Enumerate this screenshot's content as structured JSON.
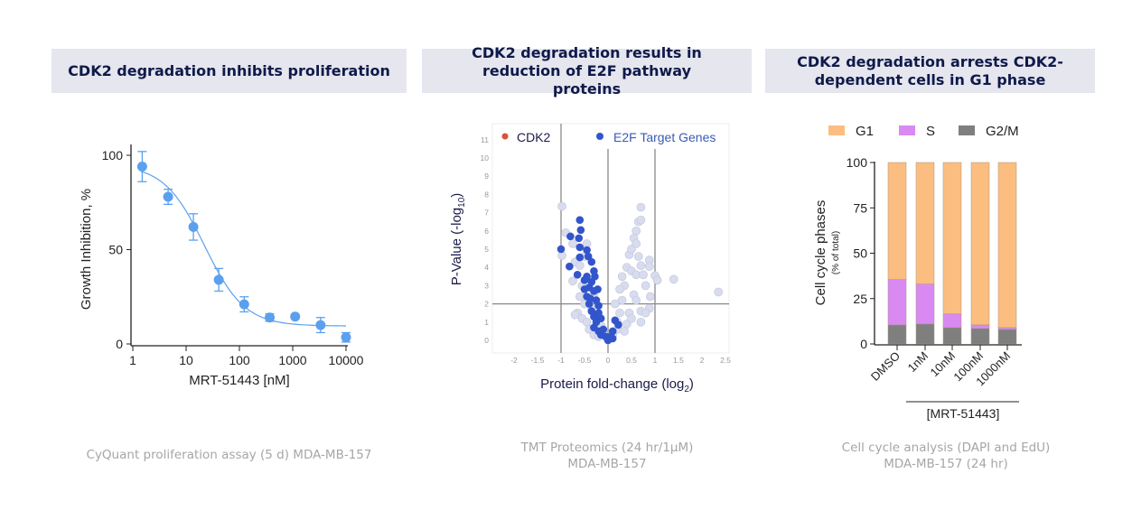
{
  "panels": [
    {
      "title": "CDK2 degradation inhibits proliferation",
      "caption": [
        "CyQuant proliferation assay (5 d) MDA-MB-157"
      ]
    },
    {
      "title": "CDK2 degradation results in reduction of E2F pathway proteins",
      "caption": [
        "TMT Proteomics (24 hr/1µM)",
        "MDA-MB-157"
      ]
    },
    {
      "title": "CDK2 degradation arrests CDK2-dependent cells in G1 phase",
      "caption": [
        "Cell cycle analysis (DAPI and EdU)",
        "MDA-MB-157 (24 hr)"
      ]
    }
  ],
  "chart_data": [
    {
      "type": "scatter",
      "xlabel": "MRT-51443 [nM]",
      "ylabel": "Growth Inhibition, %",
      "xscale": "log",
      "xlim": [
        1,
        10000
      ],
      "ylim": [
        0,
        110
      ],
      "xticks": [
        "1",
        "10",
        "100",
        "1000",
        "10000"
      ],
      "yticks": [
        "0",
        "50",
        "100"
      ],
      "color": "#5aa0ee",
      "fit": "sigmoidal dose-response",
      "points": [
        {
          "x": 1.5,
          "y": 94,
          "err": 8
        },
        {
          "x": 4.6,
          "y": 78,
          "err": 4
        },
        {
          "x": 13.7,
          "y": 62,
          "err": 7
        },
        {
          "x": 41,
          "y": 34,
          "err": 6
        },
        {
          "x": 123,
          "y": 21,
          "err": 4
        },
        {
          "x": 370,
          "y": 14,
          "err": 2
        },
        {
          "x": 1111,
          "y": 14.5,
          "err": 0
        },
        {
          "x": 3333,
          "y": 10,
          "err": 4
        },
        {
          "x": 10000,
          "y": 3.5,
          "err": 2.5
        }
      ]
    },
    {
      "type": "scatter",
      "xlabel": "Protein fold-change (log2)",
      "ylabel": "P-Value (-log10)",
      "xlim": [
        -2.5,
        2.5
      ],
      "ylim": [
        -0.6,
        11.8
      ],
      "xticks": [
        "-2",
        "-1.5",
        "-1",
        "-0.5",
        "0",
        "0.5",
        "1",
        "1.5",
        "2",
        "2.5"
      ],
      "yticks": [
        "0",
        "1",
        "2",
        "3",
        "4",
        "5",
        "6",
        "7",
        "8",
        "9",
        "10",
        "11"
      ],
      "reference_lines": {
        "x": [
          -1,
          0,
          1
        ],
        "y": [
          2
        ]
      },
      "legend": [
        {
          "name": "CDK2",
          "color": "#d9503c"
        },
        {
          "name": "E2F Target Genes",
          "color": "#3355cc"
        }
      ],
      "legend_placement": "top",
      "background_color": "#d8dcee",
      "background_points": [
        [
          -0.98,
          7.35
        ],
        [
          -0.9,
          5.9
        ],
        [
          -0.98,
          4.65
        ],
        [
          -0.75,
          5.3
        ],
        [
          -0.7,
          4.3
        ],
        [
          -0.75,
          3.25
        ],
        [
          -0.6,
          4.1
        ],
        [
          -0.45,
          5.3
        ],
        [
          -0.5,
          4.6
        ],
        [
          -0.55,
          3.0
        ],
        [
          -0.6,
          2.4
        ],
        [
          -0.65,
          1.5
        ],
        [
          -0.55,
          1.2
        ],
        [
          -0.45,
          1.0
        ],
        [
          -0.4,
          0.6
        ],
        [
          -0.3,
          0.3
        ],
        [
          -0.2,
          0.2
        ],
        [
          -0.5,
          2.0
        ],
        [
          -0.35,
          1.8
        ],
        [
          -0.25,
          1.3
        ],
        [
          -0.15,
          0.8
        ],
        [
          -0.1,
          0.4
        ],
        [
          0.05,
          0.1
        ],
        [
          0.1,
          0.3
        ],
        [
          0.2,
          0.6
        ],
        [
          0.25,
          1.5
        ],
        [
          0.3,
          2.2
        ],
        [
          0.35,
          3.0
        ],
        [
          0.3,
          3.5
        ],
        [
          0.4,
          4.0
        ],
        [
          0.45,
          4.7
        ],
        [
          0.5,
          5.0
        ],
        [
          0.55,
          5.6
        ],
        [
          0.6,
          6.0
        ],
        [
          0.65,
          6.5
        ],
        [
          0.7,
          6.6
        ],
        [
          0.7,
          7.3
        ],
        [
          0.6,
          5.3
        ],
        [
          0.65,
          4.6
        ],
        [
          0.5,
          3.8
        ],
        [
          0.6,
          3.6
        ],
        [
          0.7,
          4.1
        ],
        [
          0.75,
          3.6
        ],
        [
          0.8,
          3.0
        ],
        [
          0.88,
          4.4
        ],
        [
          0.88,
          4.05
        ],
        [
          0.9,
          2.4
        ],
        [
          0.88,
          1.75
        ],
        [
          1.0,
          3.55
        ],
        [
          1.05,
          3.3
        ],
        [
          1.4,
          3.35
        ],
        [
          2.35,
          2.65
        ],
        [
          0.7,
          1.6
        ],
        [
          0.7,
          1.0
        ],
        [
          0.45,
          1.5
        ],
        [
          0.4,
          0.9
        ],
        [
          0.55,
          2.5
        ],
        [
          0.2,
          1.0
        ],
        [
          0.15,
          2.0
        ],
        [
          0.25,
          2.8
        ],
        [
          0.5,
          1.2
        ],
        [
          0.35,
          0.5
        ],
        [
          -0.7,
          1.4
        ],
        [
          -0.3,
          2.5
        ],
        [
          0.6,
          2.2
        ],
        [
          0.8,
          1.5
        ]
      ],
      "e2f_points": [
        [
          -0.6,
          6.6
        ],
        [
          -0.58,
          6.05
        ],
        [
          -0.62,
          5.6
        ],
        [
          -0.8,
          5.7
        ],
        [
          -1.0,
          5.0
        ],
        [
          -0.6,
          5.1
        ],
        [
          -0.6,
          4.55
        ],
        [
          -0.45,
          4.95
        ],
        [
          -0.42,
          4.6
        ],
        [
          -0.82,
          4.05
        ],
        [
          -0.65,
          3.6
        ],
        [
          -0.35,
          4.3
        ],
        [
          -0.3,
          3.8
        ],
        [
          -0.45,
          3.5
        ],
        [
          -0.5,
          3.3
        ],
        [
          -0.35,
          3.2
        ],
        [
          -0.4,
          2.9
        ],
        [
          -0.3,
          2.7
        ],
        [
          -0.45,
          2.4
        ],
        [
          -0.4,
          2.0
        ],
        [
          -0.25,
          2.2
        ],
        [
          -0.35,
          1.6
        ],
        [
          -0.3,
          1.3
        ],
        [
          -0.25,
          1.0
        ],
        [
          -0.3,
          0.7
        ],
        [
          -0.2,
          0.5
        ],
        [
          -0.15,
          0.3
        ],
        [
          -0.1,
          0.6
        ],
        [
          -0.05,
          0.2
        ],
        [
          0.0,
          0.0
        ],
        [
          0.05,
          0.2
        ],
        [
          0.1,
          0.5
        ],
        [
          0.15,
          1.1
        ],
        [
          0.22,
          0.85
        ],
        [
          0.1,
          0.1
        ],
        [
          -0.2,
          1.5
        ],
        [
          -0.28,
          3.5
        ],
        [
          -0.22,
          2.8
        ],
        [
          -0.2,
          1.9
        ],
        [
          -0.15,
          1.2
        ],
        [
          -0.5,
          2.8
        ],
        [
          -0.38,
          2.3
        ]
      ]
    },
    {
      "type": "bar",
      "stacked": true,
      "ylabel": "Cell cycle phases",
      "ylabel_sub": "(% of total)",
      "ylim": [
        0,
        100
      ],
      "yticks": [
        "0",
        "25",
        "50",
        "75",
        "100"
      ],
      "categories": [
        "DMSO",
        "1nM",
        "10nM",
        "100nM",
        "1000nM"
      ],
      "group_label": "[MRT-51443]",
      "legend_placement": "top",
      "series": [
        {
          "name": "G2/M",
          "color": "#7f7f7f",
          "values": [
            10.5,
            11,
            9,
            8.5,
            8
          ]
        },
        {
          "name": "S",
          "color": "#d98af2",
          "values": [
            25,
            22,
            7.5,
            2,
            1
          ]
        },
        {
          "name": "G1",
          "color": "#fbbe80",
          "values": [
            64.5,
            67,
            83.5,
            89.5,
            91
          ]
        }
      ]
    }
  ]
}
